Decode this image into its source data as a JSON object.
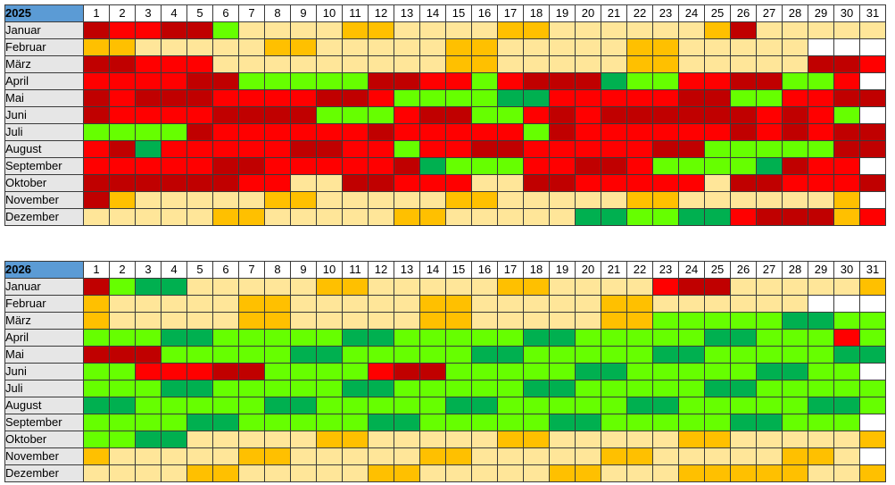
{
  "colors": {
    "R": "#ff0000",
    "D": "#c00000",
    "G": "#00b050",
    "L": "#66ff00",
    "O": "#ffc000",
    "Y": "#ffe699",
    "W": "#ffffff"
  },
  "days": [
    "1",
    "2",
    "3",
    "4",
    "5",
    "6",
    "7",
    "8",
    "9",
    "10",
    "11",
    "12",
    "13",
    "14",
    "15",
    "16",
    "17",
    "18",
    "19",
    "20",
    "21",
    "22",
    "23",
    "24",
    "25",
    "26",
    "27",
    "28",
    "29",
    "30",
    "31"
  ],
  "tables": [
    {
      "year": "2025",
      "months": [
        {
          "name": "Januar",
          "cells": "DRRDDLYYYYOOYYYYOOYYYYYYODYYYYY"
        },
        {
          "name": "Februar",
          "cells": "OOYYYYYOOYYYYYOOYYYYYOOYYYYYWWW"
        },
        {
          "name": "März",
          "cells": "DDRRRYYYYYYYYYOOYYYYYOOYYYYYDDR"
        },
        {
          "name": "April",
          "cells": "RRRRDDLLLLLDDRRLRDDDGLLRRDDLLRW"
        },
        {
          "name": "Mai",
          "cells": "DRDDDRRRRDDRLLLLGGRRRRRDDLLRRDD"
        },
        {
          "name": "Juni",
          "cells": "DRRRRDDDDLLLRDDLLRDRDDDDDDRDRLW"
        },
        {
          "name": "Juli",
          "cells": "LLLLDRRRRRRDRRRRRLDRRRRRRDRDRDD"
        },
        {
          "name": "August",
          "cells": "RDGRRRRRDDRRLRRDDRRRRRDDLLLLLDD"
        },
        {
          "name": "September",
          "cells": "RRRRRDDRRRRRDGLLLRRDDRLLLLGDRRW"
        },
        {
          "name": "Oktober",
          "cells": "DDDDDDRRYYDDRRRYYDDRRRRRYDDRRRD"
        },
        {
          "name": "November",
          "cells": "DOYYYYYOOYYYYYOOYYYYYOOYYYYYYOW"
        },
        {
          "name": "Dezember",
          "cells": "YYYYYOOYYYYYOOYYYYYGGLLGGRDDDOR"
        }
      ]
    },
    {
      "year": "2026",
      "months": [
        {
          "name": "Januar",
          "cells": "DLGGYYYYYOOYYYYYOOYYYYRDDYYYYYO"
        },
        {
          "name": "Februar",
          "cells": "OYYYYYOOYYYYYOOYYYYYOOYYYYYYWWW"
        },
        {
          "name": "März",
          "cells": "OYYYYYOOYYYYYOOYYYYYOOLLLLLGGLL"
        },
        {
          "name": "April",
          "cells": "LLLGGLLLLLGGLLLLLGGLLLLLGGLLLRL"
        },
        {
          "name": "Mai",
          "cells": "DDDLLLLLGGLLLLLGGLLLLLGGLLLLLGG"
        },
        {
          "name": "Juni",
          "cells": "LLRRRDDLLLLRDDLLLLLGGLLLLLGGLLW"
        },
        {
          "name": "Juli",
          "cells": "LLLGGLLLLLGGLLLLLGGLLLLLGGLLLLL"
        },
        {
          "name": "August",
          "cells": "GGLLLLLGGLLLLLGGLLLLLGGLLLLLGGL"
        },
        {
          "name": "September",
          "cells": "LLLLGGLLLLLGGLLLLLGGLLLLLGGLLLW"
        },
        {
          "name": "Oktober",
          "cells": "LLGGYYYYYOOYYYYYOOYYYYYOOYYYYYO"
        },
        {
          "name": "November",
          "cells": "OYYYYYOOYYYYYOOYYYYYOOYYYYYOOYW"
        },
        {
          "name": "Dezember",
          "cells": "YYYYOOYYYYYOOYYYYYOOYYYOOOOOYYO"
        }
      ]
    }
  ]
}
